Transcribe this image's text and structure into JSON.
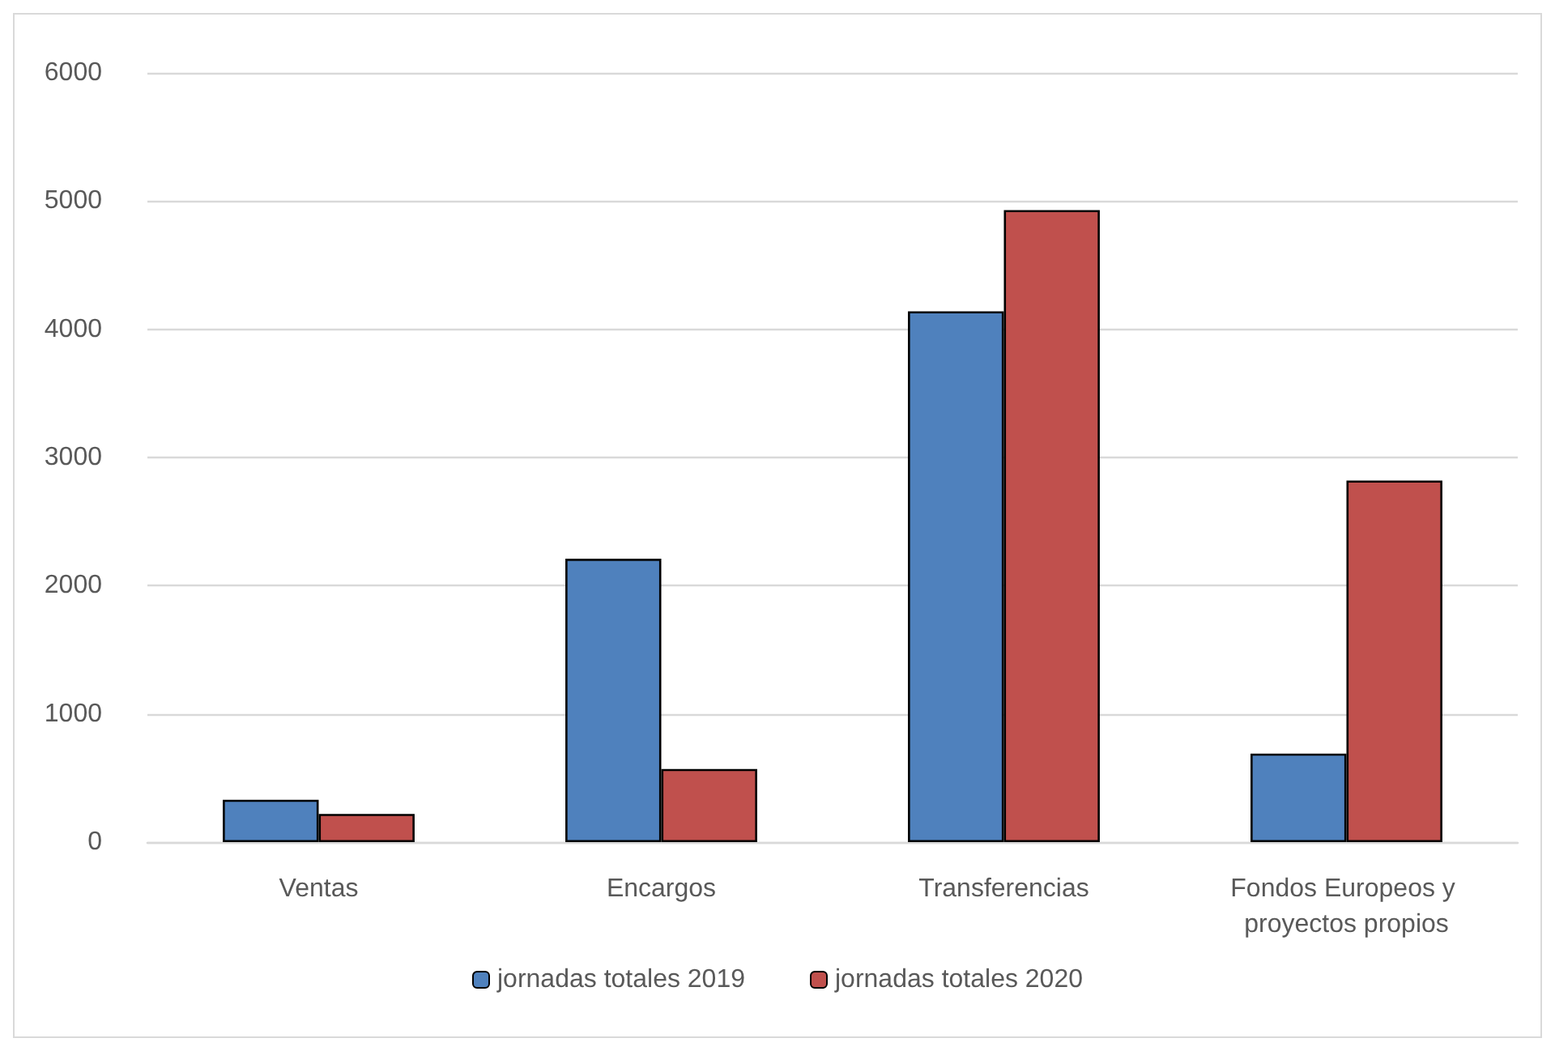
{
  "chart_data": {
    "type": "bar",
    "categories": [
      "Ventas",
      "Encargos",
      "Transferencias",
      "Fondos Europeos y proyectos propios"
    ],
    "series": [
      {
        "name": "jornadas totales 2019",
        "color": "#4f81bd",
        "values": [
          330,
          2210,
          4140,
          690
        ]
      },
      {
        "name": "jornadas totales 2020",
        "color": "#c0504d",
        "values": [
          220,
          570,
          4930,
          2820
        ]
      }
    ],
    "ylim": [
      0,
      6000
    ],
    "yticks": [
      0,
      1000,
      2000,
      3000,
      4000,
      5000,
      6000
    ],
    "grid": "y",
    "legend": "bottom"
  }
}
